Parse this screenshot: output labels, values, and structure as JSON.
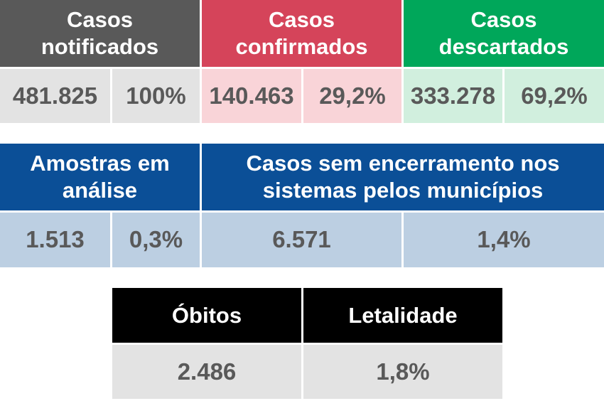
{
  "notificados": {
    "title_line1": "Casos",
    "title_line2": "notificados",
    "count": "481.825",
    "percent": "100%"
  },
  "confirmados": {
    "title_line1": "Casos",
    "title_line2": "confirmados",
    "count": "140.463",
    "percent": "29,2%"
  },
  "descartados": {
    "title_line1": "Casos",
    "title_line2": "descartados",
    "count": "333.278",
    "percent": "69,2%"
  },
  "amostras": {
    "title_line1": "Amostras em",
    "title_line2": "análise",
    "count": "1.513",
    "percent": "0,3%"
  },
  "sem_encerramento": {
    "title_line1": "Casos sem encerramento nos",
    "title_line2": "sistemas pelos municípios",
    "count": "6.571",
    "percent": "1,4%"
  },
  "obitos": {
    "title": "Óbitos",
    "count": "2.486"
  },
  "letalidade": {
    "title": "Letalidade",
    "percent": "1,8%"
  },
  "colors": {
    "notificados_header": "#595959",
    "confirmados_header": "#d5445a",
    "descartados_header": "#00a75a",
    "blue_header": "#0b4f97",
    "black_header": "#000000",
    "gray_cell": "#e3e3e3",
    "pink_cell": "#f9d4d8",
    "green_cell": "#d1efde",
    "blue_cell": "#bccfe2",
    "value_text": "#595959"
  }
}
